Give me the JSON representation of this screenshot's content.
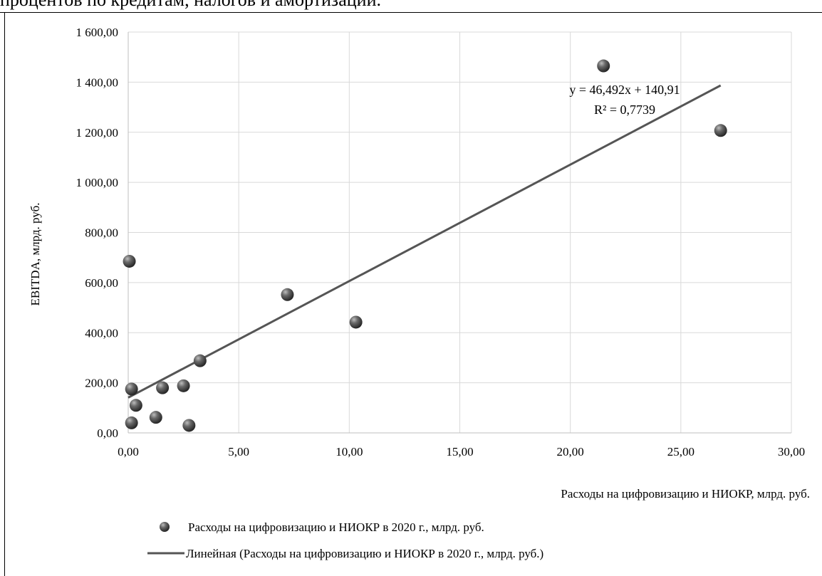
{
  "header": {
    "text": "процентов по кредитам, налогов и амортизации."
  },
  "chart_data": {
    "type": "scatter",
    "title": "",
    "xlabel": "Расходы на цифровизацию и НИОКР, млрд. руб.",
    "ylabel": "EBITDA, млрд. руб.",
    "xlim": [
      0,
      30
    ],
    "ylim": [
      0,
      1600
    ],
    "x_ticks": [
      0,
      5,
      10,
      15,
      20,
      25,
      30
    ],
    "y_ticks": [
      0,
      200,
      400,
      600,
      800,
      1000,
      1200,
      1400,
      1600
    ],
    "x_tick_labels": [
      "0,00",
      "5,00",
      "10,00",
      "15,00",
      "20,00",
      "25,00",
      "30,00"
    ],
    "y_tick_labels": [
      "0,00",
      "200,00",
      "400,00",
      "600,00",
      "800,00",
      "1 000,00",
      "1 200,00",
      "1 400,00",
      "1 600,00"
    ],
    "grid": true,
    "series": [
      {
        "name": "Расходы на цифровизацию и НИОКР в 2020 г., млрд. руб.",
        "points": [
          {
            "x": 0.05,
            "y": 685
          },
          {
            "x": 0.15,
            "y": 175
          },
          {
            "x": 0.35,
            "y": 110
          },
          {
            "x": 0.15,
            "y": 40
          },
          {
            "x": 1.25,
            "y": 62
          },
          {
            "x": 1.55,
            "y": 180
          },
          {
            "x": 2.5,
            "y": 188
          },
          {
            "x": 2.75,
            "y": 30
          },
          {
            "x": 3.25,
            "y": 288
          },
          {
            "x": 7.2,
            "y": 552
          },
          {
            "x": 10.3,
            "y": 442
          },
          {
            "x": 21.5,
            "y": 1465
          },
          {
            "x": 26.8,
            "y": 1207
          }
        ],
        "color": "#555555"
      }
    ],
    "trendline": {
      "name": "Линейная (Расходы на цифровизацию и НИОКР в 2020 г., млрд. руб.)",
      "slope": 46.492,
      "intercept": 140.91,
      "x_range": [
        0,
        26.8
      ],
      "equation": "y = 46,492x + 140,91",
      "r_squared": "R² = 0,7739",
      "color": "#555555"
    },
    "legend_position": "bottom-left"
  }
}
